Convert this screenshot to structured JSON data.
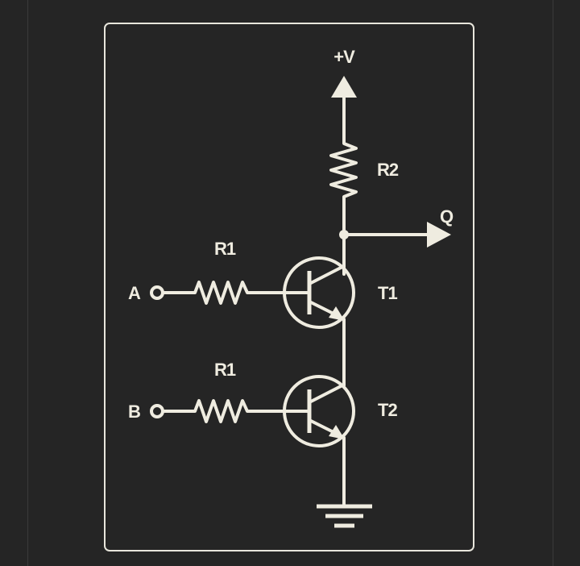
{
  "diagram": {
    "supply_label": "+V",
    "output_label": "Q",
    "input_a_label": "A",
    "input_b_label": "B",
    "resistor_a_label": "R1",
    "resistor_b_label": "R1",
    "resistor_top_label": "R2",
    "transistor_top_label": "T1",
    "transistor_bottom_label": "T2"
  },
  "colors": {
    "background": "#252525",
    "ink": "#efece0"
  }
}
